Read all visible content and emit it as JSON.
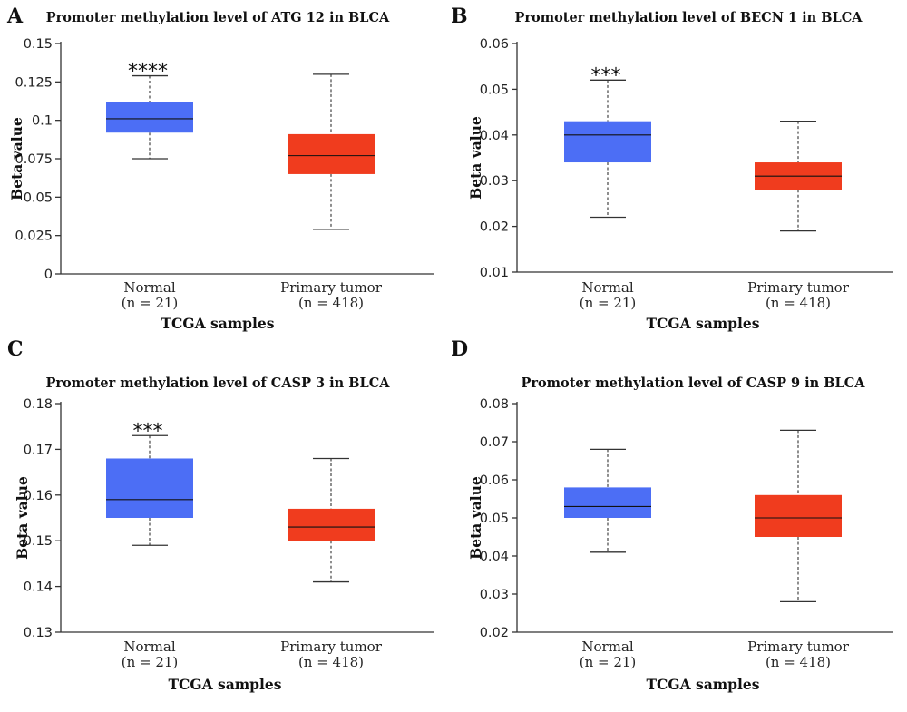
{
  "colors": {
    "normal": "#4c6ef5",
    "tumor": "#f03c1e"
  },
  "chart_data": [
    {
      "type": "box",
      "panel_letter": "A",
      "title": "Promoter methylation level of ATG 12 in BLCA",
      "ylabel": "Beta value",
      "xlabel": "TCGA samples",
      "ylim": [
        0,
        0.15
      ],
      "yticks": [
        0,
        0.025,
        0.05,
        0.075,
        0.1,
        0.125,
        0.15
      ],
      "ytick_labels": [
        "0",
        "0.025",
        "0.05",
        "0.075",
        "0.1",
        "0.125",
        "0.15"
      ],
      "categories": [
        {
          "name": "Normal",
          "n_label": "(n = 21)",
          "min": 0.075,
          "q1": 0.092,
          "median": 0.101,
          "q3": 0.112,
          "max": 0.129,
          "significance": "****"
        },
        {
          "name": "Primary tumor",
          "n_label": "(n = 418)",
          "min": 0.029,
          "q1": 0.065,
          "median": 0.077,
          "q3": 0.091,
          "max": 0.13,
          "significance": ""
        }
      ]
    },
    {
      "type": "box",
      "panel_letter": "B",
      "title": "Promoter methylation level of BECN 1 in BLCA",
      "ylabel": "Beta value",
      "xlabel": "TCGA samples",
      "ylim": [
        0.01,
        0.06
      ],
      "yticks": [
        0.01,
        0.02,
        0.03,
        0.04,
        0.05,
        0.06
      ],
      "ytick_labels": [
        "0.01",
        "0.02",
        "0.03",
        "0.04",
        "0.05",
        "0.06"
      ],
      "categories": [
        {
          "name": "Normal",
          "n_label": "(n = 21)",
          "min": 0.022,
          "q1": 0.034,
          "median": 0.04,
          "q3": 0.043,
          "max": 0.052,
          "significance": "***"
        },
        {
          "name": "Primary tumor",
          "n_label": "(n = 418)",
          "min": 0.019,
          "q1": 0.028,
          "median": 0.031,
          "q3": 0.034,
          "max": 0.043,
          "significance": ""
        }
      ]
    },
    {
      "type": "box",
      "panel_letter": "C",
      "title": "Promoter methylation level of CASP 3 in BLCA",
      "ylabel": "Beta value",
      "xlabel": "TCGA samples",
      "ylim": [
        0.13,
        0.18
      ],
      "yticks": [
        0.13,
        0.14,
        0.15,
        0.16,
        0.17,
        0.18
      ],
      "ytick_labels": [
        "0.13",
        "0.14",
        "0.15",
        "0.16",
        "0.17",
        "0.18"
      ],
      "categories": [
        {
          "name": "Normal",
          "n_label": "(n = 21)",
          "min": 0.149,
          "q1": 0.155,
          "median": 0.159,
          "q3": 0.168,
          "max": 0.173,
          "significance": "***"
        },
        {
          "name": "Primary tumor",
          "n_label": "(n = 418)",
          "min": 0.141,
          "q1": 0.15,
          "median": 0.153,
          "q3": 0.157,
          "max": 0.168,
          "significance": ""
        }
      ]
    },
    {
      "type": "box",
      "panel_letter": "D",
      "title": "Promoter methylation level of CASP 9 in BLCA",
      "ylabel": "Beta value",
      "xlabel": "TCGA samples",
      "ylim": [
        0.02,
        0.08
      ],
      "yticks": [
        0.02,
        0.03,
        0.04,
        0.05,
        0.06,
        0.07,
        0.08
      ],
      "ytick_labels": [
        "0.02",
        "0.03",
        "0.04",
        "0.05",
        "0.06",
        "0.07",
        "0.08"
      ],
      "categories": [
        {
          "name": "Normal",
          "n_label": "(n = 21)",
          "min": 0.041,
          "q1": 0.05,
          "median": 0.053,
          "q3": 0.058,
          "max": 0.068,
          "significance": ""
        },
        {
          "name": "Primary tumor",
          "n_label": "(n = 418)",
          "min": 0.028,
          "q1": 0.045,
          "median": 0.05,
          "q3": 0.056,
          "max": 0.073,
          "significance": ""
        }
      ]
    }
  ]
}
